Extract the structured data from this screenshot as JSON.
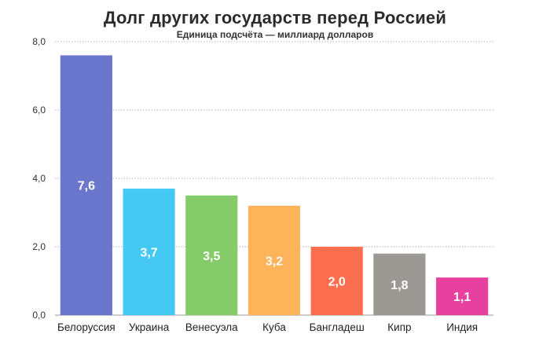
{
  "chart_data": {
    "type": "bar",
    "title": "Долг других государств перед Россией",
    "subtitle": "Единица подсчёта — миллиард долларов",
    "categories": [
      "Белоруссия",
      "Украина",
      "Венесуэла",
      "Куба",
      "Бангладеш",
      "Кипр",
      "Индия"
    ],
    "values": [
      7.6,
      3.7,
      3.5,
      3.2,
      2.0,
      1.8,
      1.1
    ],
    "value_labels": [
      "7,6",
      "3,7",
      "3,5",
      "3,2",
      "2,0",
      "1,8",
      "1,1"
    ],
    "colors": [
      "#6b77cd",
      "#44c8f4",
      "#86cb6a",
      "#fdb35a",
      "#fb6e50",
      "#9c9894",
      "#e8409e"
    ],
    "ylim": [
      0,
      8
    ],
    "yticks": [
      0,
      2,
      4,
      6,
      8
    ],
    "ytick_labels": [
      "0,0",
      "2,0",
      "4,0",
      "6,0",
      "8,0"
    ],
    "grid": true,
    "xlabel": "",
    "ylabel": ""
  }
}
